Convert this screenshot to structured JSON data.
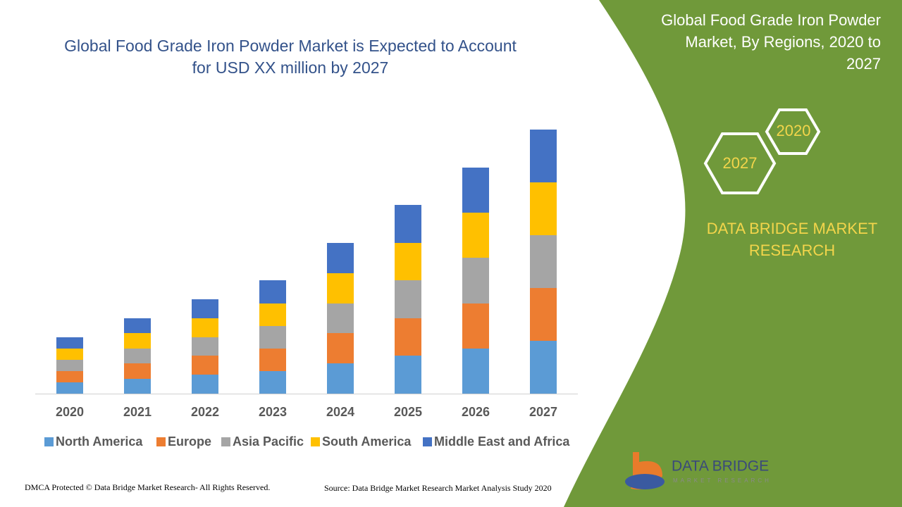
{
  "chart_data": {
    "type": "stacked-bar",
    "title": [
      "Global Food Grade Iron Powder Market is Expected to Account",
      "for USD XX million by 2027"
    ],
    "categories": [
      "2020",
      "2021",
      "2022",
      "2023",
      "2024",
      "2025",
      "2026",
      "2027"
    ],
    "series": [
      {
        "name": "North America",
        "color": "#5b9bd5",
        "values": [
          16,
          21,
          27,
          32,
          43,
          54,
          64,
          75
        ]
      },
      {
        "name": "Europe",
        "color": "#ed7d31",
        "values": [
          16,
          22,
          27,
          32,
          43,
          53,
          64,
          75
        ]
      },
      {
        "name": "Asia Pacific",
        "color": "#a5a5a5",
        "values": [
          16,
          21,
          26,
          32,
          42,
          54,
          65,
          75
        ]
      },
      {
        "name": "South America",
        "color": "#ffc000",
        "values": [
          16,
          22,
          27,
          32,
          43,
          53,
          64,
          75
        ]
      },
      {
        "name": "Middle East and Africa",
        "color": "#4472c4",
        "values": [
          16,
          21,
          27,
          33,
          43,
          54,
          64,
          75
        ]
      }
    ],
    "ylim": [
      0,
      375
    ],
    "legend": "bottom"
  },
  "panel": {
    "title": [
      "Global Food Grade Iron Powder",
      "Market, By Regions, 2020 to",
      "2027"
    ],
    "hex_front": "2027",
    "hex_back": "2020",
    "brand": [
      "DATA BRIDGE MARKET",
      "RESEARCH"
    ]
  },
  "logo": {
    "name": "DATA BRIDGE",
    "tagline": "MARKET RESEARCH"
  },
  "footer": {
    "left": "DMCA Protected © Data Bridge Market Research- All Rights Reserved.",
    "right": "Source: Data Bridge Market Research Market Analysis Study 2020"
  }
}
